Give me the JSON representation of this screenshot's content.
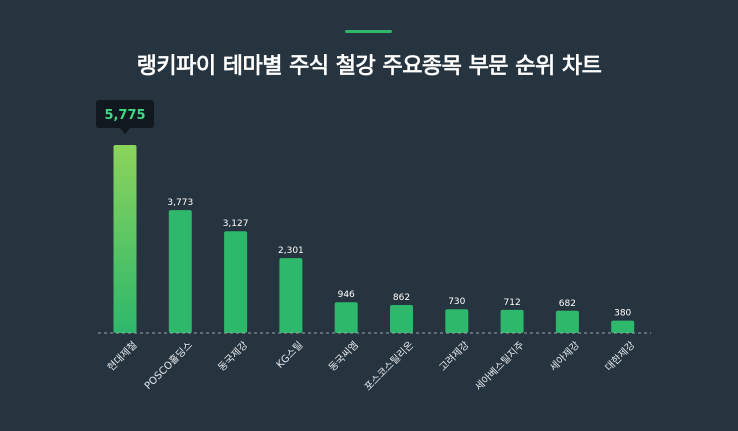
{
  "header": {
    "title": "랭키파이 테마별 주식 철강 주요종목 부문 순위 차트"
  },
  "colors": {
    "background": "#26343f",
    "bar": "#2db86c",
    "bar_top_highlight": "#8bd45a",
    "tooltip_bg": "#111820",
    "tooltip_text": "#3ddc84",
    "baseline": "#9aa6ae"
  },
  "chart_data": {
    "type": "bar",
    "title": "랭키파이 테마별 주식 철강 주요종목 부문 순위 차트",
    "categories": [
      "현대제철",
      "POSCO홀딩스",
      "동국제강",
      "KG스틸",
      "동국씨엠",
      "포스코스틸리온",
      "고려제강",
      "세아베스틸지주",
      "세아제강",
      "대한제강"
    ],
    "values": [
      5775,
      3773,
      3127,
      2301,
      946,
      862,
      730,
      712,
      682,
      380
    ],
    "value_labels": [
      "5,775",
      "3,773",
      "3,127",
      "2,301",
      "946",
      "862",
      "730",
      "712",
      "682",
      "380"
    ],
    "highlight_index": 0,
    "xlabel": "",
    "ylabel": "",
    "grid": false
  }
}
